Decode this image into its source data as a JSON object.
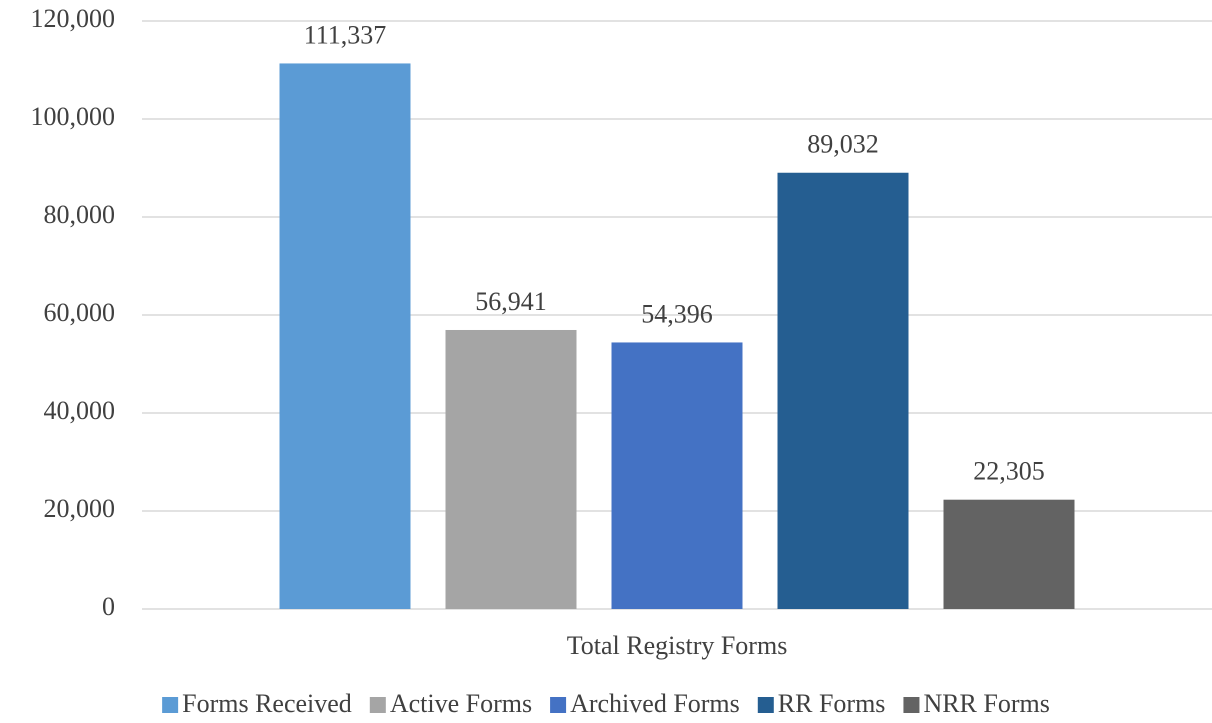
{
  "chart_data": {
    "type": "bar",
    "categories": [
      "Total Registry Forms"
    ],
    "series": [
      {
        "name": "Forms Received",
        "color": "#5b9bd5",
        "values": [
          111337
        ],
        "value_labels": [
          "111,337"
        ]
      },
      {
        "name": "Active Forms",
        "color": "#a5a5a5",
        "values": [
          56941
        ],
        "value_labels": [
          "56,941"
        ]
      },
      {
        "name": "Archived Forms",
        "color": "#4472c4",
        "values": [
          54396
        ],
        "value_labels": [
          "54,396"
        ]
      },
      {
        "name": "RR Forms",
        "color": "#255e91",
        "values": [
          89032
        ],
        "value_labels": [
          "89,032"
        ]
      },
      {
        "name": "NRR Forms",
        "color": "#636363",
        "values": [
          22305
        ],
        "value_labels": [
          "22,305"
        ]
      }
    ],
    "ylim": [
      0,
      120000
    ],
    "yticks": [
      0,
      {
        "value": 20000,
        "label": "20,000"
      },
      {
        "value": 40000,
        "label": "40,000"
      },
      {
        "value": 60000,
        "label": "60,000"
      },
      {
        "value": 80000,
        "label": "80,000"
      },
      {
        "value": 100000,
        "label": "100,000"
      },
      {
        "value": 120000,
        "label": "120,000"
      }
    ],
    "grid": true,
    "legend": "bottom"
  }
}
